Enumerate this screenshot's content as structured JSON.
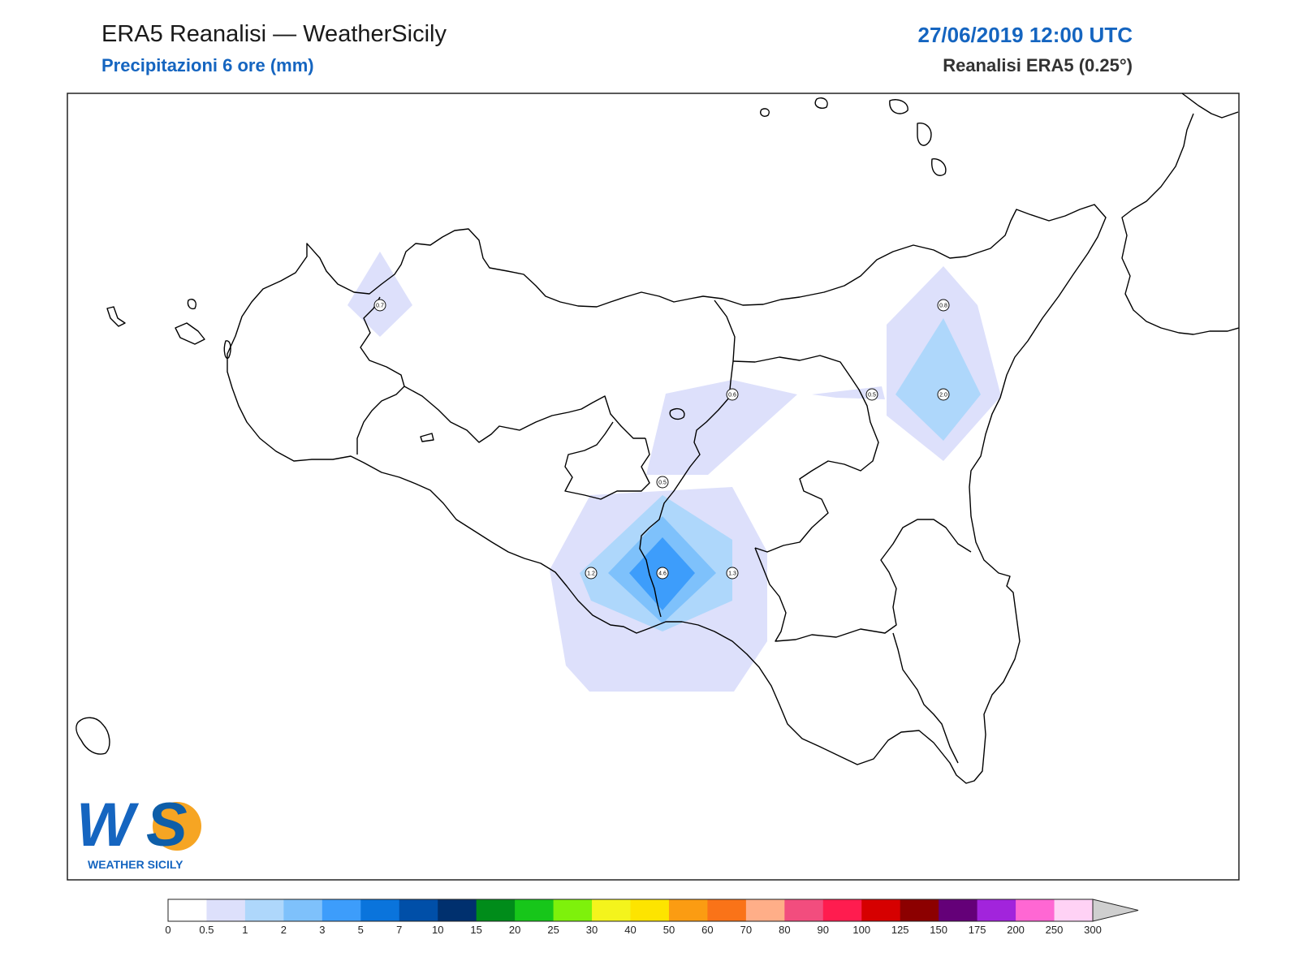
{
  "header": {
    "title": "ERA5 Reanalisi — WeatherSicily",
    "subtitle": "Precipitazioni 6 ore (mm)",
    "datetime": "27/06/2019 12:00 UTC",
    "model": "Reanalisi ERA5 (0.25°)"
  },
  "logo": {
    "letters": "WS",
    "text": "WEATHER SICILY"
  },
  "stations": [
    {
      "label": "0.7"
    },
    {
      "label": "0.8"
    },
    {
      "label": "0.5"
    },
    {
      "label": "2.0"
    },
    {
      "label": "0.6"
    },
    {
      "label": "0.5"
    },
    {
      "label": "1.2"
    },
    {
      "label": "4.6"
    },
    {
      "label": "1.3"
    }
  ],
  "legend": {
    "ticks": [
      "0",
      "0.5",
      "1",
      "2",
      "3",
      "5",
      "7",
      "10",
      "15",
      "20",
      "25",
      "30",
      "40",
      "50",
      "60",
      "70",
      "80",
      "90",
      "100",
      "125",
      "150",
      "175",
      "200",
      "250",
      "300"
    ],
    "colors": [
      "#ffffff",
      "#dde0fb",
      "#aed7fb",
      "#7ec1fb",
      "#3d9dfb",
      "#0a74dc",
      "#004fa8",
      "#00306e",
      "#008c1a",
      "#17c61a",
      "#7ef10b",
      "#f4f41c",
      "#fde400",
      "#fb9c12",
      "#fa7318",
      "#ffae88",
      "#f24d7e",
      "#ff1c4f",
      "#d60000",
      "#8c0000",
      "#640078",
      "#a224dc",
      "#ff67d3",
      "#ffd2f5",
      "#cfcfcf"
    ]
  }
}
